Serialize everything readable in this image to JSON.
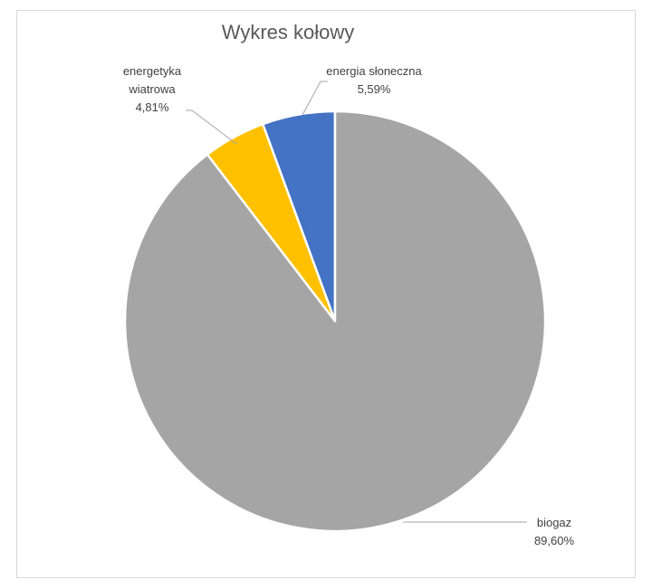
{
  "chart_data": {
    "type": "pie",
    "title": "Wykres kołowy",
    "start_angle_deg": 0,
    "direction": "counterclockwise",
    "slices": [
      {
        "name": "energia słoneczna",
        "name_lines": [
          "energia słoneczna"
        ],
        "value": 5.59,
        "label": "5,59%",
        "color": "#4472c4"
      },
      {
        "name": "energetyka wiatrowa",
        "name_lines": [
          "energetyka",
          "wiatrowa"
        ],
        "value": 4.81,
        "label": "4,81%",
        "color": "#ffc000"
      },
      {
        "name": "biogaz",
        "name_lines": [
          "biogaz"
        ],
        "value": 89.6,
        "label": "89,60%",
        "color": "#a5a5a5"
      }
    ],
    "legend": "none",
    "data_labels": "outside with leader lines"
  }
}
